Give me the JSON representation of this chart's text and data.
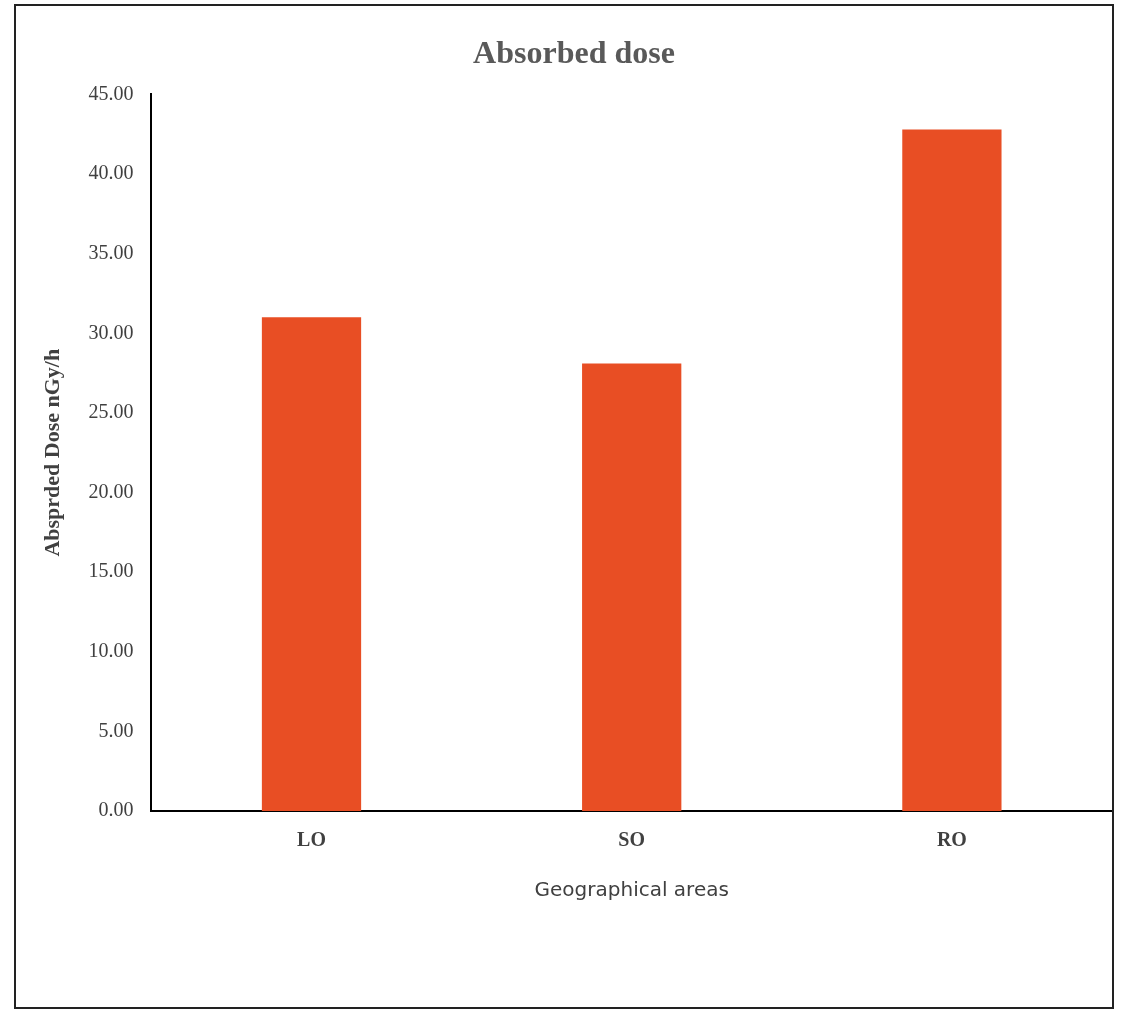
{
  "chart_data": {
    "type": "bar",
    "title": "Absorbed dose",
    "xlabel": "Geographical areas",
    "ylabel": "Absprded Dose nGy/h",
    "categories": [
      "LO",
      "SO",
      "RO"
    ],
    "values": [
      31.0,
      28.1,
      42.8
    ],
    "color": "#e84e24",
    "ylim": [
      0,
      45
    ],
    "yticks": [
      {
        "value": 0,
        "label": "0.00"
      },
      {
        "value": 5,
        "label": "5.00"
      },
      {
        "value": 10,
        "label": "10.00"
      },
      {
        "value": 15,
        "label": "15.00"
      },
      {
        "value": 20,
        "label": "20.00"
      },
      {
        "value": 25,
        "label": "25.00"
      },
      {
        "value": 30,
        "label": "30.00"
      },
      {
        "value": 35,
        "label": "35.00"
      },
      {
        "value": 40,
        "label": "40.00"
      },
      {
        "value": 45,
        "label": "45.00"
      }
    ],
    "grid": false,
    "legend": false
  }
}
